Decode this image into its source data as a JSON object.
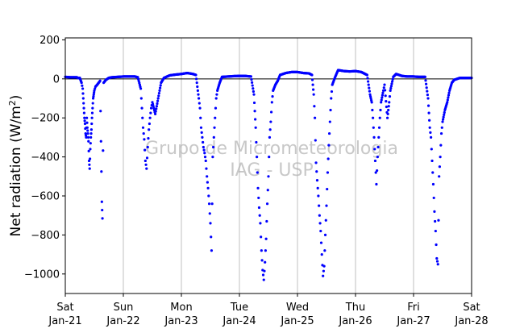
{
  "chart_data": {
    "type": "scatter",
    "title": "",
    "ylabel": "Net radiation (W/m",
    "ylabel_sup": "2",
    "ylabel_close": ")",
    "ylim": [
      -1100,
      210
    ],
    "yticks": [
      200,
      0,
      -200,
      -400,
      -600,
      -800,
      -1000
    ],
    "ytick_labels": [
      "200",
      "0",
      "−200",
      "−400",
      "−600",
      "−800",
      "−1000"
    ],
    "xlim": [
      "2024-01-21",
      "2024-01-28"
    ],
    "xticks": [
      {
        "day": "Sat",
        "date": "Jan-21"
      },
      {
        "day": "Sun",
        "date": "Jan-22"
      },
      {
        "day": "Mon",
        "date": "Jan-23"
      },
      {
        "day": "Tue",
        "date": "Jan-24"
      },
      {
        "day": "Wed",
        "date": "Jan-25"
      },
      {
        "day": "Thu",
        "date": "Jan-26"
      },
      {
        "day": "Fri",
        "date": "Jan-27"
      },
      {
        "day": "Sat",
        "date": "Jan-28"
      }
    ],
    "vertical_grid": true,
    "reference_line_y": 0,
    "marker_color": "#0000ff",
    "watermark": [
      "Grupo de Micrometeorologia",
      "IAG - USP"
    ],
    "watermark_color": "#c8c8c8",
    "series": [
      {
        "days": [
          {
            "night": [
              [
                0.0,
                10
              ],
              [
                0.1,
                8
              ],
              [
                0.2,
                8
              ],
              [
                0.22,
                4
              ],
              [
                0.25,
                5
              ],
              [
                0.28,
                -20
              ],
              [
                0.3,
                -50
              ],
              [
                0.31,
                -100
              ],
              [
                0.32,
                -150
              ],
              [
                0.33,
                -200
              ],
              [
                0.34,
                -230
              ],
              [
                0.35,
                -280
              ],
              [
                0.36,
                -300
              ],
              [
                0.37,
                -200
              ],
              [
                0.38,
                -250
              ],
              [
                0.39,
                -280
              ],
              [
                0.4,
                -320
              ],
              [
                0.41,
                -420
              ],
              [
                0.42,
                -460
              ],
              [
                0.43,
                -360
              ],
              [
                0.44,
                -300
              ],
              [
                0.45,
                -260
              ],
              [
                0.46,
                -200
              ],
              [
                0.47,
                -150
              ],
              [
                0.48,
                -100
              ],
              [
                0.49,
                -80
              ],
              [
                0.5,
                -60
              ],
              [
                0.52,
                -40
              ],
              [
                0.55,
                -30
              ],
              [
                0.6,
                -10
              ],
              [
                0.63,
                -630
              ],
              [
                0.64,
                -715
              ],
              [
                0.66,
                -20
              ],
              [
                0.7,
                -5
              ],
              [
                0.75,
                5
              ],
              [
                0.8,
                8
              ],
              [
                0.9,
                10
              ]
            ],
            "label": "Jan-21"
          },
          {
            "night": [
              [
                1.0,
                12
              ],
              [
                1.1,
                12
              ],
              [
                1.2,
                12
              ],
              [
                1.25,
                8
              ],
              [
                1.3,
                -50
              ],
              [
                1.32,
                -150
              ],
              [
                1.34,
                -250
              ],
              [
                1.36,
                -310
              ],
              [
                1.38,
                -420
              ],
              [
                1.4,
                -460
              ],
              [
                1.42,
                -350
              ],
              [
                1.44,
                -260
              ],
              [
                1.46,
                -200
              ],
              [
                1.48,
                -150
              ],
              [
                1.5,
                -120
              ],
              [
                1.55,
                -180
              ],
              [
                1.6,
                -100
              ],
              [
                1.65,
                -20
              ],
              [
                1.7,
                5
              ],
              [
                1.8,
                18
              ],
              [
                1.9,
                22
              ]
            ],
            "label": "Jan-22"
          },
          {
            "night": [
              [
                2.0,
                25
              ],
              [
                2.1,
                30
              ],
              [
                2.2,
                25
              ],
              [
                2.25,
                20
              ],
              [
                2.3,
                -100
              ],
              [
                2.32,
                -150
              ],
              [
                2.34,
                -250
              ],
              [
                2.36,
                -300
              ],
              [
                2.38,
                -350
              ],
              [
                2.4,
                -380
              ],
              [
                2.42,
                -420
              ],
              [
                2.44,
                -500
              ],
              [
                2.46,
                -560
              ],
              [
                2.48,
                -640
              ],
              [
                2.5,
                -740
              ],
              [
                2.52,
                -880
              ],
              [
                2.54,
                -400
              ],
              [
                2.56,
                -300
              ],
              [
                2.58,
                -200
              ],
              [
                2.6,
                -100
              ],
              [
                2.62,
                -60
              ],
              [
                2.66,
                -20
              ],
              [
                2.7,
                10
              ],
              [
                2.8,
                12
              ],
              [
                2.9,
                14
              ]
            ],
            "label": "Jan-23"
          },
          {
            "night": [
              [
                3.0,
                15
              ],
              [
                3.1,
                15
              ],
              [
                3.2,
                12
              ],
              [
                3.25,
                -80
              ],
              [
                3.28,
                -250
              ],
              [
                3.3,
                -400
              ],
              [
                3.32,
                -560
              ],
              [
                3.34,
                -660
              ],
              [
                3.36,
                -740
              ],
              [
                3.38,
                -880
              ],
              [
                3.4,
                -980
              ],
              [
                3.42,
                -1030
              ],
              [
                3.44,
                -940
              ],
              [
                3.46,
                -820
              ],
              [
                3.48,
                -640
              ],
              [
                3.5,
                -500
              ],
              [
                3.52,
                -300
              ],
              [
                3.54,
                -220
              ],
              [
                3.56,
                -120
              ],
              [
                3.58,
                -60
              ],
              [
                3.62,
                -30
              ],
              [
                3.66,
                -10
              ],
              [
                3.7,
                20
              ],
              [
                3.8,
                30
              ],
              [
                3.9,
                35
              ]
            ],
            "label": "Jan-24"
          },
          {
            "night": [
              [
                4.0,
                35
              ],
              [
                4.1,
                30
              ],
              [
                4.2,
                28
              ],
              [
                4.25,
                20
              ],
              [
                4.28,
                -80
              ],
              [
                4.3,
                -200
              ],
              [
                4.32,
                -430
              ],
              [
                4.34,
                -520
              ],
              [
                4.36,
                -600
              ],
              [
                4.38,
                -700
              ],
              [
                4.4,
                -780
              ],
              [
                4.42,
                -900
              ],
              [
                4.44,
                -1010
              ],
              [
                4.46,
                -960
              ],
              [
                4.48,
                -800
              ],
              [
                4.5,
                -650
              ],
              [
                4.52,
                -480
              ],
              [
                4.54,
                -340
              ],
              [
                4.56,
                -220
              ],
              [
                4.58,
                -100
              ],
              [
                4.6,
                -30
              ],
              [
                4.65,
                10
              ],
              [
                4.7,
                45
              ],
              [
                4.8,
                40
              ],
              [
                4.9,
                38
              ]
            ],
            "label": "Jan-25"
          },
          {
            "night": [
              [
                5.0,
                40
              ],
              [
                5.1,
                35
              ],
              [
                5.2,
                20
              ],
              [
                5.25,
                -80
              ],
              [
                5.28,
                -120
              ],
              [
                5.3,
                -200
              ],
              [
                5.32,
                -300
              ],
              [
                5.34,
                -420
              ],
              [
                5.36,
                -540
              ],
              [
                5.38,
                -400
              ],
              [
                5.4,
                -300
              ],
              [
                5.42,
                -200
              ],
              [
                5.44,
                -120
              ],
              [
                5.48,
                -60
              ],
              [
                5.5,
                -30
              ],
              [
                5.55,
                -200
              ],
              [
                5.58,
                -120
              ],
              [
                5.6,
                -60
              ],
              [
                5.65,
                10
              ],
              [
                5.7,
                25
              ],
              [
                5.8,
                15
              ],
              [
                5.9,
                12
              ]
            ],
            "label": "Jan-26"
          },
          {
            "night": [
              [
                6.0,
                12
              ],
              [
                6.1,
                10
              ],
              [
                6.2,
                10
              ],
              [
                6.25,
                -100
              ],
              [
                6.28,
                -250
              ],
              [
                6.3,
                -300
              ],
              [
                6.32,
                -420
              ],
              [
                6.34,
                -540
              ],
              [
                6.36,
                -680
              ],
              [
                6.38,
                -780
              ],
              [
                6.4,
                -920
              ],
              [
                6.42,
                -950
              ],
              [
                6.44,
                -500
              ],
              [
                6.46,
                -400
              ],
              [
                6.48,
                -280
              ],
              [
                6.5,
                -220
              ],
              [
                6.54,
                -160
              ],
              [
                6.58,
                -120
              ],
              [
                6.62,
                -60
              ],
              [
                6.66,
                -20
              ],
              [
                6.7,
                -5
              ],
              [
                6.8,
                5
              ],
              [
                6.9,
                5
              ]
            ],
            "label": "Jan-27"
          }
        ]
      }
    ]
  }
}
